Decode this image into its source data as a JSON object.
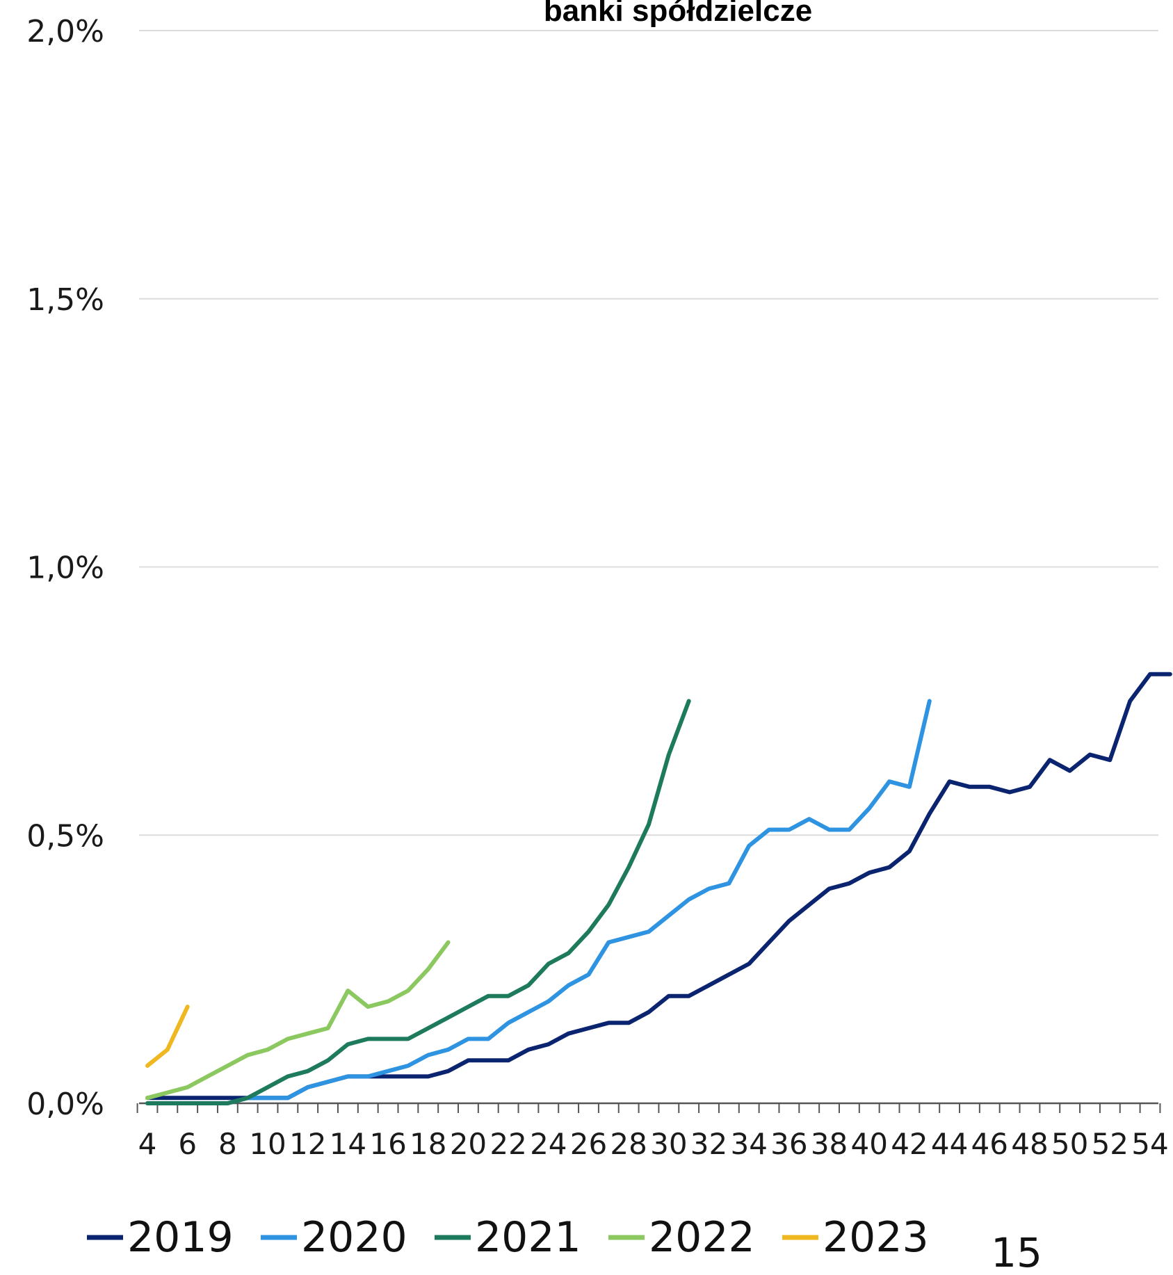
{
  "chart_data": {
    "type": "line",
    "title": "banki spółdzielcze",
    "xlabel": "",
    "ylabel": "",
    "xlim": [
      4,
      55
    ],
    "ylim": [
      0,
      0.02
    ],
    "y_ticks": [
      0,
      0.005,
      0.01,
      0.015,
      0.02
    ],
    "y_tick_labels": [
      "0,0%",
      "0,5%",
      "1,0%",
      "1,5%",
      "2,0%"
    ],
    "x_ticks": [
      4,
      6,
      8,
      10,
      12,
      14,
      16,
      18,
      20,
      22,
      24,
      26,
      28,
      30,
      32,
      34,
      36,
      38,
      40,
      42,
      44,
      46,
      48,
      50,
      52,
      54
    ],
    "x_tick_labels": [
      "4",
      "6",
      "8",
      "10",
      "12",
      "14",
      "16",
      "18",
      "20",
      "22",
      "24",
      "26",
      "28",
      "30",
      "32",
      "34",
      "36",
      "38",
      "40",
      "42",
      "44",
      "46",
      "48",
      "50",
      "52",
      "54"
    ],
    "grid": "horizontal",
    "legend_position": "bottom",
    "series": [
      {
        "name": "2019",
        "color": "#0b2470",
        "x": [
          4,
          5,
          6,
          7,
          8,
          9,
          10,
          11,
          12,
          13,
          14,
          15,
          16,
          17,
          18,
          19,
          20,
          21,
          22,
          23,
          24,
          25,
          26,
          27,
          28,
          29,
          30,
          31,
          32,
          33,
          34,
          35,
          36,
          37,
          38,
          39,
          40,
          41,
          42,
          43,
          44,
          45,
          46,
          47,
          48,
          49,
          50,
          51,
          52,
          53,
          54,
          55
        ],
        "y": [
          0.0001,
          0.0001,
          0.0001,
          0.0001,
          0.0001,
          0.0001,
          0.0001,
          0.0001,
          0.0003,
          0.0004,
          0.0005,
          0.0005,
          0.0005,
          0.0005,
          0.0005,
          0.0006,
          0.0008,
          0.0008,
          0.0008,
          0.001,
          0.0011,
          0.0013,
          0.0014,
          0.0015,
          0.0015,
          0.0017,
          0.002,
          0.002,
          0.0022,
          0.0024,
          0.0026,
          0.003,
          0.0034,
          0.0037,
          0.004,
          0.0041,
          0.0043,
          0.0044,
          0.0047,
          0.0054,
          0.006,
          0.0059,
          0.0059,
          0.0058,
          0.0059,
          0.0064,
          0.0062,
          0.0065,
          0.0064,
          0.0075,
          0.008,
          0.008
        ]
      },
      {
        "name": "2020",
        "color": "#2e93e0",
        "x": [
          4,
          5,
          6,
          7,
          8,
          9,
          10,
          11,
          12,
          13,
          14,
          15,
          16,
          17,
          18,
          19,
          20,
          21,
          22,
          23,
          24,
          25,
          26,
          27,
          28,
          29,
          30,
          31,
          32,
          33,
          34,
          35,
          36,
          37,
          38,
          39,
          40,
          41,
          42,
          43
        ],
        "y": [
          0.0,
          0.0,
          0.0,
          0.0,
          0.0,
          0.0001,
          0.0001,
          0.0001,
          0.0003,
          0.0004,
          0.0005,
          0.0005,
          0.0006,
          0.0007,
          0.0009,
          0.001,
          0.0012,
          0.0012,
          0.0015,
          0.0017,
          0.0019,
          0.0022,
          0.0024,
          0.003,
          0.0031,
          0.0032,
          0.0035,
          0.0038,
          0.004,
          0.0041,
          0.0048,
          0.0051,
          0.0051,
          0.0053,
          0.0051,
          0.0051,
          0.0055,
          0.006,
          0.0059,
          0.0075
        ]
      },
      {
        "name": "2021",
        "color": "#1d7a5c",
        "x": [
          4,
          5,
          6,
          7,
          8,
          9,
          10,
          11,
          12,
          13,
          14,
          15,
          16,
          17,
          18,
          19,
          20,
          21,
          22,
          23,
          24,
          25,
          26,
          27,
          28,
          29,
          30,
          31
        ],
        "y": [
          0.0,
          0.0,
          0.0,
          0.0,
          0.0,
          0.0001,
          0.0003,
          0.0005,
          0.0006,
          0.0008,
          0.0011,
          0.0012,
          0.0012,
          0.0012,
          0.0014,
          0.0016,
          0.0018,
          0.002,
          0.002,
          0.0022,
          0.0026,
          0.0028,
          0.0032,
          0.0037,
          0.0044,
          0.0052,
          0.0065,
          0.0075
        ]
      },
      {
        "name": "2022",
        "color": "#8cc860",
        "x": [
          4,
          5,
          6,
          7,
          8,
          9,
          10,
          11,
          12,
          13,
          14,
          15,
          16,
          17,
          18,
          19
        ],
        "y": [
          0.0001,
          0.0002,
          0.0003,
          0.0005,
          0.0007,
          0.0009,
          0.001,
          0.0012,
          0.0013,
          0.0014,
          0.0021,
          0.0018,
          0.0019,
          0.0021,
          0.0025,
          0.003
        ]
      },
      {
        "name": "2023",
        "color": "#f0b820",
        "x": [
          4,
          5,
          6
        ],
        "y": [
          0.0007,
          0.001,
          0.0018
        ]
      }
    ]
  },
  "page_number": "15"
}
